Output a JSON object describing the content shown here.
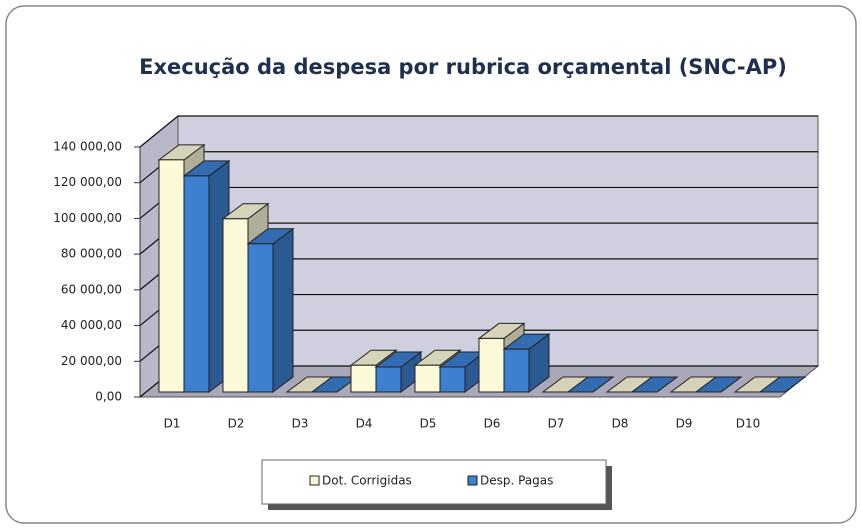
{
  "chart_data": {
    "type": "bar3d",
    "title": "Execução da despesa por rubrica orçamental (SNC-AP)",
    "categories": [
      "D1",
      "D2",
      "D3",
      "D4",
      "D5",
      "D6",
      "D7",
      "D8",
      "D9",
      "D10"
    ],
    "series": [
      {
        "name": "Dot. Corrigidas",
        "color": "#fcf9d8",
        "values": [
          130000,
          97000,
          0,
          15000,
          15000,
          30000,
          0,
          0,
          0,
          0
        ]
      },
      {
        "name": "Desp. Pagas",
        "color": "#3d7fd0",
        "values": [
          121000,
          83000,
          0,
          14000,
          14000,
          24000,
          0,
          0,
          0,
          0
        ]
      }
    ],
    "ylim": [
      0,
      140000
    ],
    "yticks": [
      {
        "value": 0,
        "label": "0,00"
      },
      {
        "value": 20000,
        "label": "20 000,00"
      },
      {
        "value": 40000,
        "label": "40 000,00"
      },
      {
        "value": 60000,
        "label": "60 000,00"
      },
      {
        "value": 80000,
        "label": "80 000,00"
      },
      {
        "value": 100000,
        "label": "100 000,00"
      },
      {
        "value": 120000,
        "label": "120 000,00"
      },
      {
        "value": 140000,
        "label": "140 000,00"
      }
    ],
    "grid": true,
    "legend": "bottom"
  }
}
